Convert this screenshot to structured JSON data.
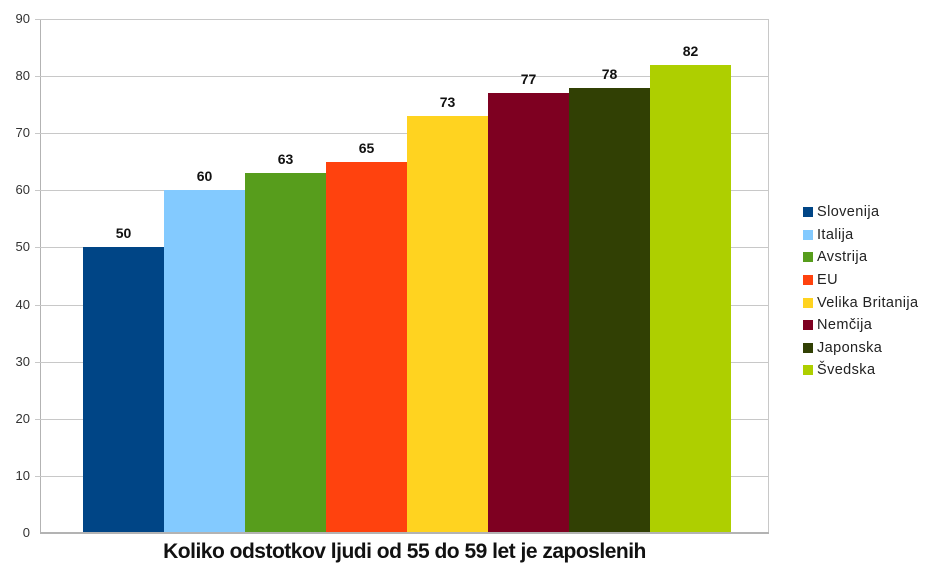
{
  "chart_data": {
    "type": "bar",
    "title": "Koliko odstotkov ljudi od 55 do 59 let je zaposlenih",
    "xlabel": "",
    "ylabel": "",
    "ylim": [
      0,
      90
    ],
    "yticks": [
      0,
      10,
      20,
      30,
      40,
      50,
      60,
      70,
      80,
      90
    ],
    "grid": true,
    "legend_position": "right",
    "categories": [
      "Slovenija",
      "Italija",
      "Avstrija",
      "EU",
      "Velika Britanija",
      "Nemčija",
      "Japonska",
      "Švedska"
    ],
    "values": [
      50,
      60,
      63,
      65,
      73,
      77,
      78,
      82
    ],
    "series": [
      {
        "name": "Slovenija",
        "values": [
          50
        ],
        "color": "#004586"
      },
      {
        "name": "Italija",
        "values": [
          60
        ],
        "color": "#83caff"
      },
      {
        "name": "Avstrija",
        "values": [
          63
        ],
        "color": "#579d1c"
      },
      {
        "name": "EU",
        "values": [
          65
        ],
        "color": "#ff420e"
      },
      {
        "name": "Velika Britanija",
        "values": [
          73
        ],
        "color": "#ffd320"
      },
      {
        "name": "Nemčija",
        "values": [
          77
        ],
        "color": "#7e0021"
      },
      {
        "name": "Japonska",
        "values": [
          78
        ],
        "color": "#314004"
      },
      {
        "name": "Švedska",
        "values": [
          82
        ],
        "color": "#aecf00"
      }
    ],
    "data_labels": [
      "50",
      "60",
      "63",
      "65",
      "73",
      "77",
      "78",
      "82"
    ]
  }
}
